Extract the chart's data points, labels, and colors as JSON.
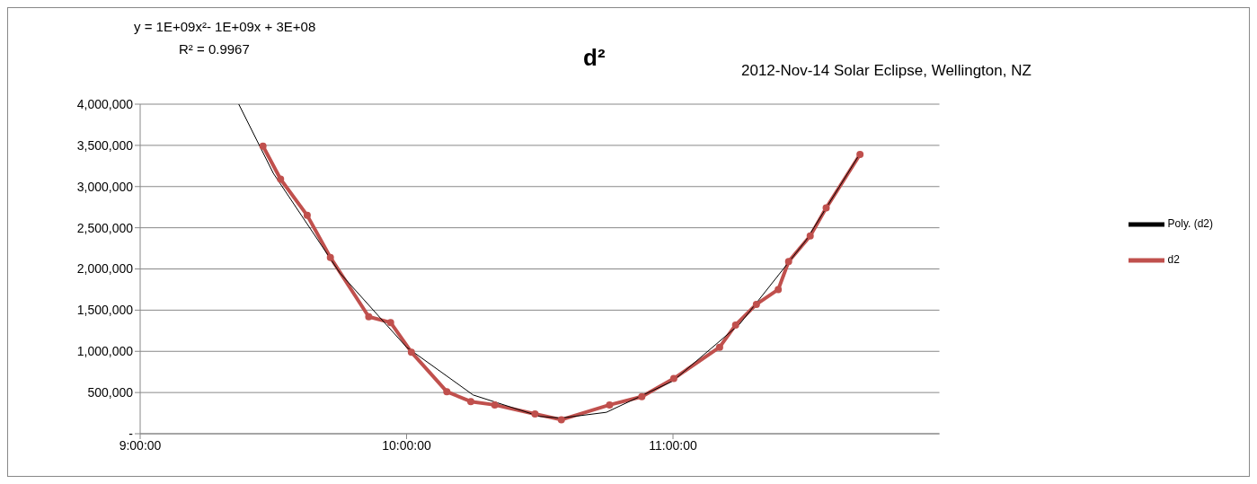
{
  "chart_data": {
    "type": "line",
    "title": "d²",
    "subtitle": "2012-Nov-14 Solar Eclipse, Wellington, NZ",
    "annotations": [
      "y = 1E+09x²- 1E+09x + 3E+08",
      "R² = 0.9967"
    ],
    "xlim": [
      9,
      12
    ],
    "xticks": [
      {
        "value": 9,
        "label": "9:00:00"
      },
      {
        "value": 10,
        "label": "10:00:00"
      },
      {
        "value": 11,
        "label": "11:00:00"
      }
    ],
    "ylim": [
      0,
      4000000
    ],
    "yticks": [
      {
        "value": 0,
        "label": "-"
      },
      {
        "value": 500000,
        "label": "500,000"
      },
      {
        "value": 1000000,
        "label": "1,000,000"
      },
      {
        "value": 1500000,
        "label": "1,500,000"
      },
      {
        "value": 2000000,
        "label": "2,000,000"
      },
      {
        "value": 2500000,
        "label": "2,500,000"
      },
      {
        "value": 3000000,
        "label": "3,000,000"
      },
      {
        "value": 3500000,
        "label": "3,500,000"
      },
      {
        "value": 4000000,
        "label": "4,000,000"
      }
    ],
    "grid": "y",
    "legend": "right",
    "series": [
      {
        "name": "d2",
        "color": "#c0504d",
        "marker": "circle",
        "x": [
          9.461,
          9.527,
          9.627,
          9.714,
          9.858,
          9.94,
          10.018,
          10.151,
          10.241,
          10.331,
          10.482,
          10.581,
          10.762,
          10.883,
          11.003,
          11.175,
          11.235,
          11.313,
          11.395,
          11.434,
          11.515,
          11.575,
          11.702
        ],
        "values": [
          3490000,
          3090000,
          2650000,
          2140000,
          1420000,
          1350000,
          990000,
          510000,
          390000,
          350000,
          240000,
          170000,
          350000,
          450000,
          670000,
          1050000,
          1320000,
          1570000,
          1750000,
          2090000,
          2400000,
          2740000,
          3390000
        ]
      },
      {
        "name": "Poly. (d2)",
        "color": "#000000",
        "marker": "none",
        "type": "line",
        "x": [
          9.37,
          9.5,
          9.75,
          10.0,
          10.25,
          10.5,
          10.58,
          10.75,
          11.0,
          11.25,
          11.5,
          11.7
        ],
        "values": [
          4000000,
          3160000,
          1950000,
          1050000,
          470000,
          210000,
          190000,
          260000,
          640000,
          1330000,
          2350000,
          3390000
        ]
      }
    ]
  }
}
